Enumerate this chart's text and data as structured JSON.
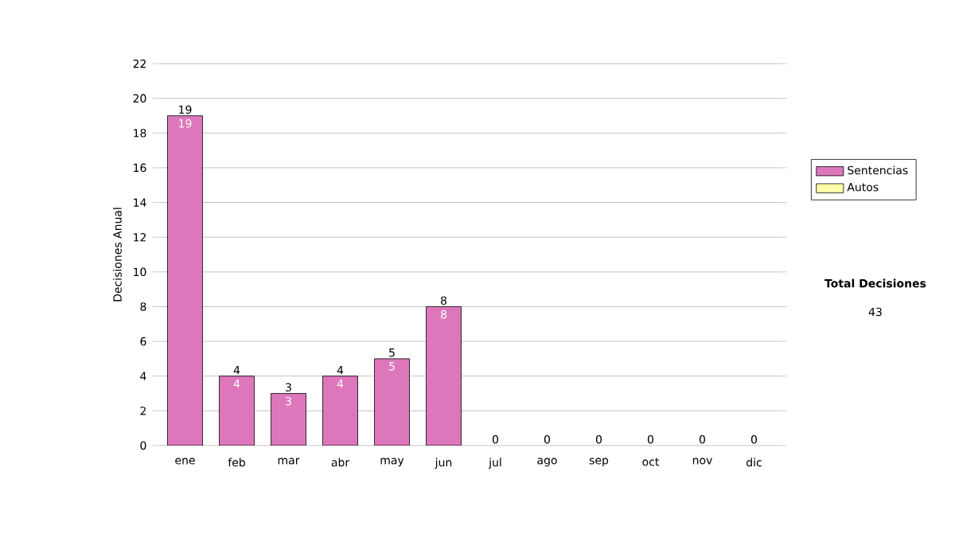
{
  "chart_data": {
    "type": "bar",
    "stacked": true,
    "ylabel": "Decisiones Anual",
    "categories": [
      "ene",
      "feb",
      "mar",
      "abr",
      "may",
      "jun",
      "jul",
      "ago",
      "sep",
      "oct",
      "nov",
      "dic"
    ],
    "series": [
      {
        "name": "Sentencias",
        "color": "#dd77bb",
        "values": [
          19,
          4,
          3,
          4,
          5,
          8,
          0,
          0,
          0,
          0,
          0,
          0
        ],
        "value_labels": [
          "19",
          "4",
          "3",
          "4",
          "5",
          "8",
          null,
          null,
          null,
          null,
          null,
          null
        ]
      },
      {
        "name": "Autos",
        "color": "#ffffaa",
        "values": [
          0,
          0,
          0,
          0,
          0,
          0,
          0,
          0,
          0,
          0,
          0,
          0
        ]
      }
    ],
    "totals": [
      "19",
      "4",
      "3",
      "4",
      "5",
      "8",
      "0",
      "0",
      "0",
      "0",
      "0",
      "0"
    ],
    "ylim": [
      0,
      22
    ],
    "yticks": [
      0,
      2,
      4,
      6,
      8,
      10,
      12,
      14,
      16,
      18,
      20,
      22
    ],
    "grid": "y",
    "legend": "right",
    "annotations": [
      "Total Decisiones",
      "43"
    ]
  }
}
